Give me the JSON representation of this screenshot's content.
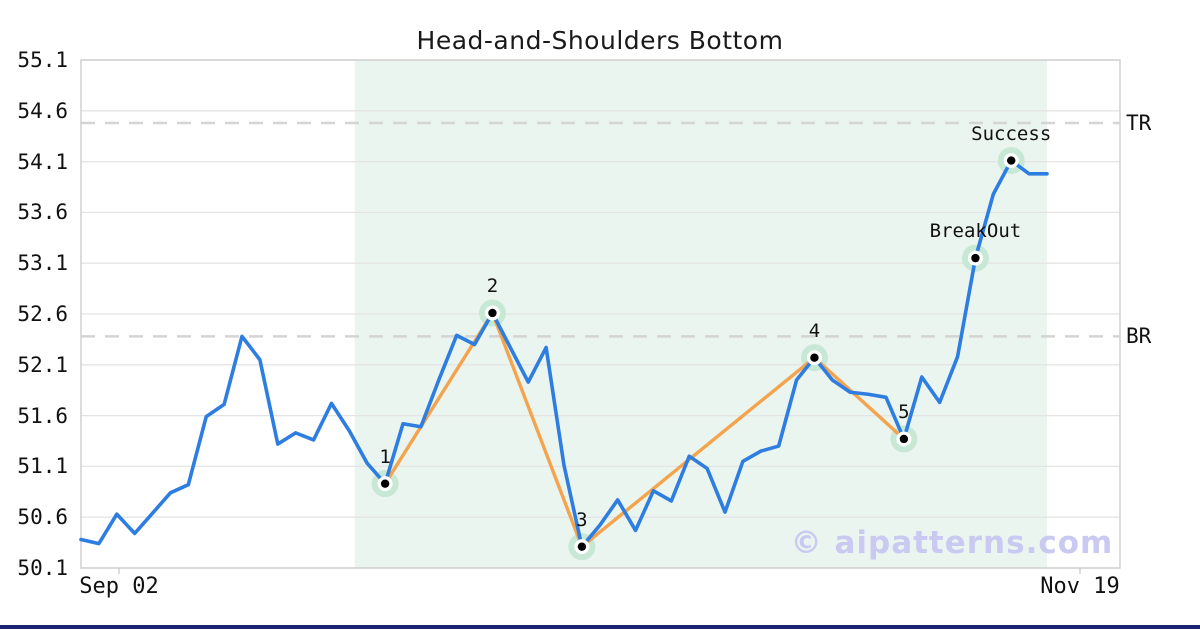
{
  "title": "Head-and-Shoulders Bottom",
  "watermark_text": "© aipatterns.com",
  "axes": {
    "y_tick_labels": [
      "55.1",
      "54.6",
      "54.1",
      "53.6",
      "53.1",
      "52.6",
      "52.1",
      "51.6",
      "51.1",
      "50.6",
      "50.1"
    ],
    "x_tick_labels": [
      "Sep 02",
      "Nov 19"
    ]
  },
  "colors": {
    "price_line": "#2e7de0",
    "pattern_line": "#f4a44c",
    "shaded_region": "#ebf5f0",
    "marker_halo": "#c7e8d5",
    "marker_dot": "#000000",
    "marker_ring": "#ffffff",
    "gridline": "#e4e4e4",
    "plot_border": "#d0d0d0",
    "reference_dash": "#d4d4d4",
    "watermark": "#c9c9f1",
    "bottom_bar": "#1a2472",
    "text": "#111111"
  },
  "chart_data": {
    "type": "line",
    "title": "Head-and-Shoulders Bottom",
    "xlabel": "",
    "ylabel": "",
    "x_start_label": "Sep 02",
    "x_end_label": "Nov 19",
    "y_range": [
      50.1,
      55.1
    ],
    "y_tick_step": 0.5,
    "grid": "horizontal",
    "series": [
      {
        "name": "price",
        "values": [
          50.38,
          50.34,
          50.63,
          50.44,
          50.64,
          50.84,
          50.92,
          51.59,
          51.71,
          52.38,
          52.15,
          51.32,
          51.43,
          51.36,
          51.72,
          51.45,
          51.13,
          50.93,
          51.52,
          51.49,
          51.95,
          52.39,
          52.3,
          52.61,
          52.27,
          51.93,
          52.27,
          51.11,
          50.31,
          50.52,
          50.77,
          50.47,
          50.86,
          50.76,
          51.2,
          51.08,
          50.65,
          51.15,
          51.25,
          51.3,
          51.95,
          52.17,
          51.95,
          51.83,
          51.81,
          51.78,
          51.37,
          51.98,
          51.73,
          52.18,
          53.15,
          53.78,
          54.11,
          53.98,
          53.98
        ]
      },
      {
        "name": "pattern",
        "point_indices": [
          17,
          23,
          28,
          41,
          46
        ]
      }
    ],
    "markers": [
      {
        "label": "1",
        "index": 17,
        "value": 50.93
      },
      {
        "label": "2",
        "index": 23,
        "value": 52.61
      },
      {
        "label": "3",
        "index": 28,
        "value": 50.31
      },
      {
        "label": "4",
        "index": 41,
        "value": 52.17
      },
      {
        "label": "5",
        "index": 46,
        "value": 51.37
      },
      {
        "label": "BreakOut",
        "index": 50,
        "value": 53.15
      },
      {
        "label": "Success",
        "index": 52,
        "value": 54.11
      }
    ],
    "reference_lines": [
      {
        "label": "TR",
        "value": 54.48
      },
      {
        "label": "BR",
        "value": 52.38
      }
    ],
    "shaded_region": {
      "start_index": 15.3,
      "end_index": 54
    }
  }
}
